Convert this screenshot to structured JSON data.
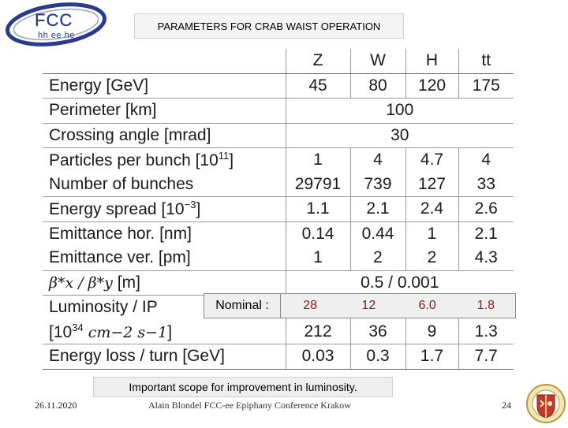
{
  "header": {
    "title": "PARAMETERS FOR CRAB WAIST OPERATION",
    "logo_text_main": "FCC",
    "logo_text_sub": "hh ee he"
  },
  "table": {
    "columns": [
      "Z",
      "W",
      "H",
      "tt"
    ],
    "rows": [
      {
        "label": "Energy [GeV]",
        "values": [
          "45",
          "80",
          "120",
          "175"
        ]
      },
      {
        "label": "Perimeter [km]",
        "span_value": "100"
      },
      {
        "label": "Crossing angle [mrad]",
        "span_value": "30"
      },
      {
        "label": "Particles per bunch [10",
        "label_sup": "11",
        "label_end": "]",
        "values": [
          "1",
          "4",
          "4.7",
          "4"
        ]
      },
      {
        "label": "Number of bunches",
        "values": [
          "29791",
          "739",
          "127",
          "33"
        ]
      },
      {
        "label": "Energy spread [10",
        "label_sup": "−3",
        "label_end": "]",
        "values": [
          "1.1",
          "2.1",
          "2.4",
          "2.6"
        ]
      },
      {
        "label": "Emittance hor. [nm]",
        "values": [
          "0.14",
          "0.44",
          "1",
          "2.1"
        ]
      },
      {
        "label": "Emittance ver. [pm]",
        "values": [
          "1",
          "2",
          "2",
          "4.3"
        ]
      },
      {
        "label_math": "β*x / β*y",
        "label_end": " [m]",
        "span_value": "0.5 / 0.001"
      },
      {
        "label": "Luminosity / IP"
      },
      {
        "label_pre": "[10",
        "label_sup": "34",
        "label_math": " cm−2 s−1",
        "label_end": "]",
        "values": [
          "212",
          "36",
          "9",
          "1.3"
        ]
      },
      {
        "label": "Energy loss / turn [GeV]",
        "values": [
          "0.03",
          "0.3",
          "1.7",
          "7.7"
        ]
      }
    ]
  },
  "nominal": {
    "label": "Nominal :",
    "values": [
      "28",
      "12",
      "6.0",
      "1.8"
    ]
  },
  "note": "Important scope for improvement in luminosity.",
  "footer": {
    "date": "26.11.2020",
    "center": "Alain Blondel  FCC-ee  Epiphany Conference Krakow",
    "page": "24"
  },
  "colors": {
    "nominal_values": "#8b1a1a",
    "logo_blue": "#2a3a8c"
  }
}
